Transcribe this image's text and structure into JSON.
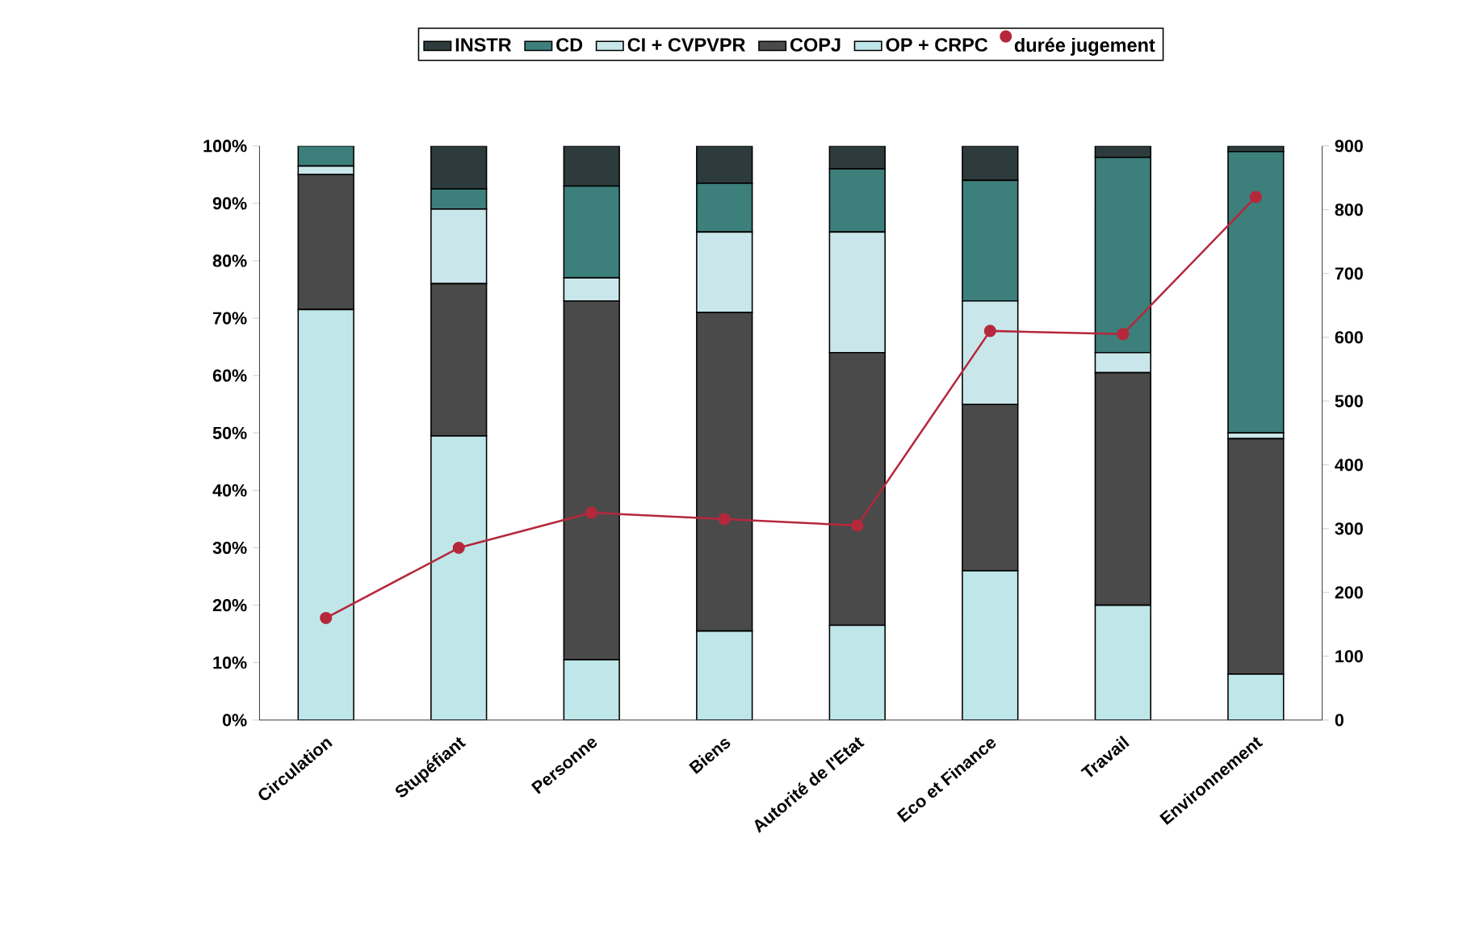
{
  "chart_data": {
    "type": "bar",
    "stacked": true,
    "legend": "top",
    "categories": [
      "Circulation",
      "Stupéfiant",
      "Personne",
      "Biens",
      "Autorité de l'Etat",
      "Eco et Finance",
      "Travail",
      "Environnement"
    ],
    "series": [
      {
        "name": "OP + CRPC",
        "color": "#bfe6e8",
        "values": [
          71.5,
          49.5,
          10.5,
          15.5,
          16.5,
          26,
          20,
          8
        ]
      },
      {
        "name": "COPJ",
        "color": "#4a4a4a",
        "values": [
          23.5,
          26.5,
          62.5,
          55.5,
          47.5,
          29,
          40.5,
          41
        ]
      },
      {
        "name": "CI + CVPVPR",
        "color": "#c9e7ea",
        "values": [
          1.5,
          13,
          4,
          14,
          21,
          18,
          3.5,
          1
        ]
      },
      {
        "name": "CD",
        "color": "#3c7f7b",
        "values": [
          3.5,
          3.5,
          16,
          8.5,
          11,
          21,
          34,
          49
        ]
      },
      {
        "name": "INSTR",
        "color": "#2e3b3c",
        "values": [
          0,
          7.5,
          7,
          6.5,
          4,
          6,
          2,
          1
        ]
      },
      {
        "name": "durée jugement",
        "type": "line",
        "axis": "y2",
        "color": "#b5283c",
        "marker": "circle",
        "line_style": "solid",
        "values": [
          160,
          270,
          325,
          315,
          305,
          610,
          605,
          820
        ]
      }
    ],
    "ylim": [
      0,
      100
    ],
    "yticks": [
      {
        "value": 0,
        "label": "0%"
      },
      {
        "value": 10,
        "label": "10%"
      },
      {
        "value": 20,
        "label": "20%"
      },
      {
        "value": 30,
        "label": "30%"
      },
      {
        "value": 40,
        "label": "40%"
      },
      {
        "value": 50,
        "label": "50%"
      },
      {
        "value": 60,
        "label": "60%"
      },
      {
        "value": 70,
        "label": "70%"
      },
      {
        "value": 80,
        "label": "80%"
      },
      {
        "value": 90,
        "label": "90%"
      },
      {
        "value": 100,
        "label": "100%"
      }
    ],
    "y2lim": [
      0,
      900
    ],
    "y2ticks": [
      0,
      100,
      200,
      300,
      400,
      500,
      600,
      700,
      800,
      900
    ]
  }
}
